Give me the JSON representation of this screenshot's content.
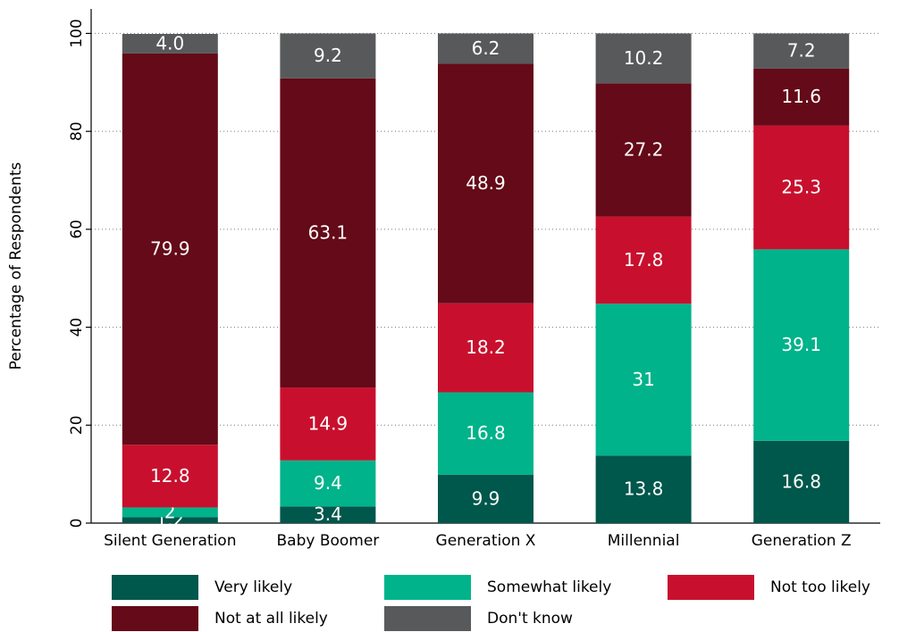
{
  "chart_data": {
    "type": "stacked_bar",
    "y_label": "Percentage of Respondents",
    "categories": [
      "Silent Generation",
      "Baby Boomer",
      "Generation X",
      "Millennial",
      "Generation Z"
    ],
    "series": [
      {
        "name": "Very likely",
        "color": "#00574b",
        "values": [
          1.2,
          3.4,
          9.9,
          13.8,
          16.8
        ]
      },
      {
        "name": "Somewhat likely",
        "color": "#00b38a",
        "values": [
          2.0,
          9.4,
          16.8,
          31.0,
          39.1
        ]
      },
      {
        "name": "Not too likely",
        "color": "#c8102e",
        "values": [
          12.8,
          14.9,
          18.2,
          17.8,
          25.3
        ]
      },
      {
        "name": "Not at all likely",
        "color": "#640a18",
        "values": [
          79.9,
          63.1,
          48.9,
          27.2,
          11.6
        ]
      },
      {
        "name": "Don't know",
        "color": "#58595b",
        "values": [
          4.0,
          9.2,
          6.2,
          10.2,
          7.2
        ],
        "value_labels": [
          "4.0",
          "9.2",
          "6.2",
          "10.2",
          "7.2"
        ]
      }
    ],
    "ylim": [
      0,
      105
    ],
    "yticks": [
      0,
      20,
      40,
      60,
      80,
      100
    ],
    "grid": true,
    "legend": "bottom"
  }
}
